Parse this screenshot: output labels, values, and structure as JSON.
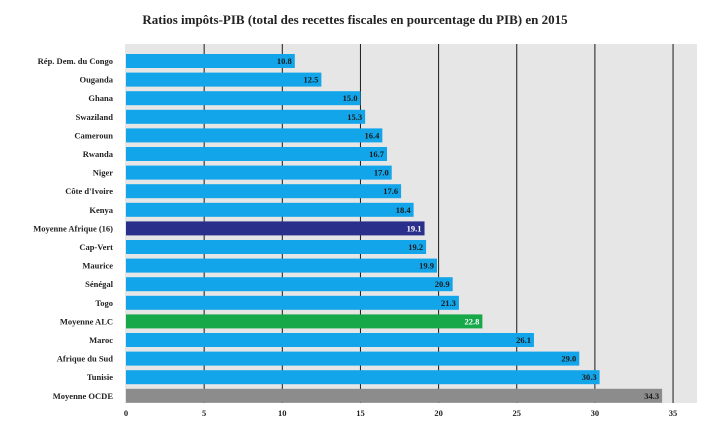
{
  "chart_data": {
    "type": "bar",
    "orientation": "horizontal",
    "title": "Ratios impôts-PIB (total des recettes fiscales en pourcentage du PIB) en 2015",
    "xlabel": "",
    "ylabel": "",
    "xlim": [
      0,
      35
    ],
    "ticks": [
      0,
      5,
      10,
      15,
      20,
      25,
      30,
      35
    ],
    "tick_labels": [
      "0",
      "5",
      "10",
      "15",
      "20",
      "25",
      "30",
      "35"
    ],
    "grid": true,
    "categories": [
      "Rép. Dem. du Congo",
      "Ouganda",
      "Ghana",
      "Swaziland",
      "Cameroun",
      "Rwanda",
      "Niger",
      "Côte d'Ivoire",
      "Kenya",
      "Moyenne Afrique (16)",
      "Cap-Vert",
      "Maurice",
      "Sénégal",
      "Togo",
      "Moyenne ALC",
      "Maroc",
      "Afrique du Sud",
      "Tunisie",
      "Moyenne OCDE"
    ],
    "values": [
      10.8,
      12.5,
      15.0,
      15.3,
      16.4,
      16.7,
      17.0,
      17.6,
      18.4,
      19.1,
      19.2,
      19.9,
      20.9,
      21.3,
      22.8,
      26.1,
      29.0,
      30.3,
      34.3
    ],
    "value_labels": [
      "10.8",
      "12.5",
      "15.0",
      "15.3",
      "16.4",
      "16.7",
      "17.0",
      "17.6",
      "18.4",
      "19.1",
      "19.2",
      "19.9",
      "20.9",
      "21.3",
      "22.8",
      "26.1",
      "29.0",
      "30.3",
      "34.3"
    ],
    "colors": {
      "default": "#12a5ea",
      "Moyenne Afrique (16)": "#2b2f8c",
      "Moyenne ALC": "#17a84a",
      "Moyenne OCDE": "#8c8c8c",
      "background": "#e6e6e6",
      "gridline": "#1a1a1a"
    }
  }
}
